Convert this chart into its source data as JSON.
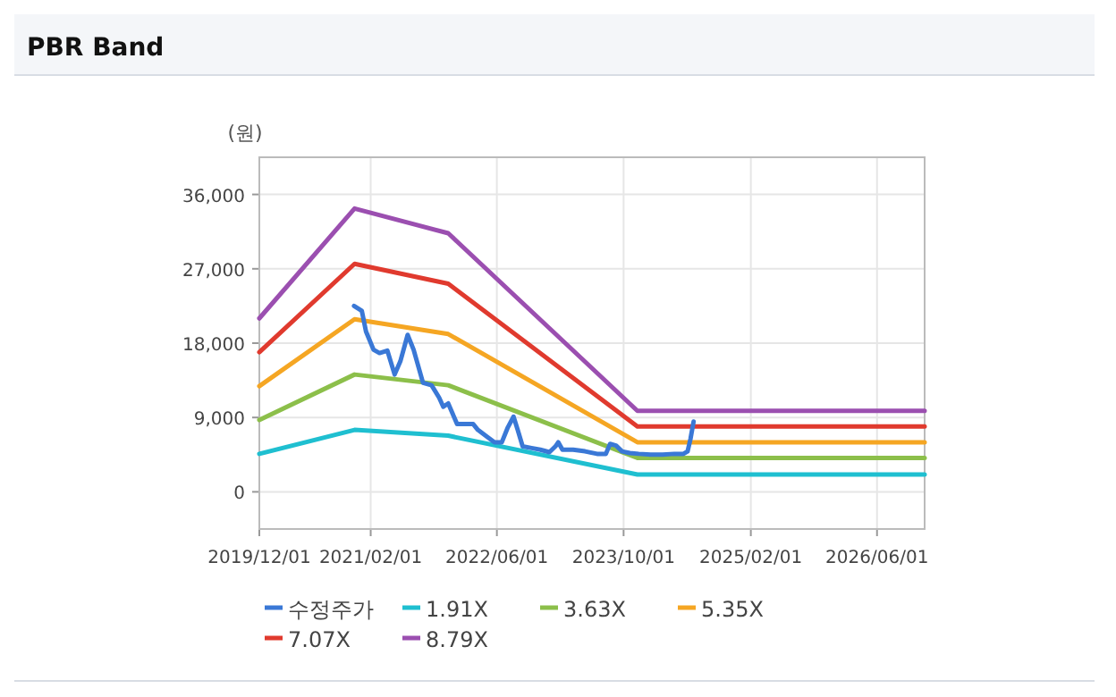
{
  "chart_data": {
    "type": "line",
    "title": "PBR Band",
    "ylabel": "(원)",
    "xlim": [
      "2019-12-01",
      "2026-12-01"
    ],
    "ylim": [
      -4500,
      40500
    ],
    "xticks": [
      {
        "value": "2019-12-01",
        "label": "2019/12/01"
      },
      {
        "value": "2021-02-01",
        "label": "2021/02/01"
      },
      {
        "value": "2022-06-01",
        "label": "2022/06/01"
      },
      {
        "value": "2023-10-01",
        "label": "2023/10/01"
      },
      {
        "value": "2025-02-01",
        "label": "2025/02/01"
      },
      {
        "value": "2026-06-01",
        "label": "2026/06/01"
      }
    ],
    "yticks": [
      0,
      {
        "value": 9000,
        "label": "9,000"
      },
      {
        "value": 18000,
        "label": "18,000"
      },
      {
        "value": 27000,
        "label": "27,000"
      },
      {
        "value": 36000,
        "label": "36,000"
      }
    ],
    "grid": true,
    "legend": "bottom",
    "marker": "none",
    "line_style": "solid",
    "series": [
      {
        "name": "수정주가",
        "color": "#3a78d6",
        "x": [
          "2020-11-29",
          "2020-12-29",
          "2021-01-14",
          "2021-02-12",
          "2021-03-07",
          "2021-04-06",
          "2021-05-04",
          "2021-05-26",
          "2021-06-23",
          "2021-07-16",
          "2021-08-21",
          "2021-09-23",
          "2021-10-22",
          "2021-11-07",
          "2021-11-26",
          "2021-12-30",
          "2022-02-07",
          "2022-03-02",
          "2022-03-20",
          "2022-04-23",
          "2022-05-23",
          "2022-06-20",
          "2022-07-13",
          "2022-08-04",
          "2022-08-20",
          "2022-09-08",
          "2022-10-12",
          "2022-11-15",
          "2022-12-20",
          "2023-01-12",
          "2023-01-23",
          "2023-02-08",
          "2023-03-21",
          "2023-05-06",
          "2023-06-21",
          "2023-07-25",
          "2023-08-10",
          "2023-09-02",
          "2023-09-25",
          "2023-10-25",
          "2023-11-28",
          "2024-01-13",
          "2024-02-28",
          "2024-04-13",
          "2024-05-18",
          "2024-06-03",
          "2024-06-14",
          "2024-06-26"
        ],
        "values": [
          22500,
          21900,
          19400,
          17200,
          16800,
          17100,
          14200,
          15800,
          19000,
          17200,
          13200,
          12900,
          11400,
          10300,
          10700,
          8200,
          8200,
          8200,
          7500,
          6700,
          6000,
          6000,
          7800,
          9100,
          7500,
          5500,
          5300,
          5100,
          4800,
          5500,
          6000,
          5100,
          5100,
          4900,
          4600,
          4600,
          5800,
          5600,
          4900,
          4700,
          4600,
          4500,
          4500,
          4600,
          4600,
          4900,
          6400,
          8500
        ]
      },
      {
        "name": "1.91X",
        "color": "#1fbfd0",
        "x": [
          "2019-12-01",
          "2020-12-01",
          "2021-11-26",
          "2023-11-23",
          "2026-12-01"
        ],
        "values": [
          4600,
          7500,
          6800,
          2100,
          2100
        ]
      },
      {
        "name": "3.63X",
        "color": "#8cbf4a",
        "x": [
          "2019-12-01",
          "2020-12-01",
          "2021-11-26",
          "2023-11-23",
          "2026-12-01"
        ],
        "values": [
          8700,
          14200,
          12900,
          4100,
          4100
        ]
      },
      {
        "name": "5.35X",
        "color": "#f5a623",
        "x": [
          "2019-12-01",
          "2020-12-01",
          "2021-11-26",
          "2023-11-23",
          "2026-12-01"
        ],
        "values": [
          12800,
          20900,
          19100,
          6000,
          6000
        ]
      },
      {
        "name": "7.07X",
        "color": "#e03a2e",
        "x": [
          "2019-12-01",
          "2020-12-01",
          "2021-11-26",
          "2023-11-23",
          "2026-12-01"
        ],
        "values": [
          16900,
          27600,
          25200,
          7900,
          7900
        ]
      },
      {
        "name": "8.79X",
        "color": "#9b4fb0",
        "x": [
          "2019-12-01",
          "2020-12-01",
          "2021-11-26",
          "2023-11-23",
          "2026-12-01"
        ],
        "values": [
          21000,
          34300,
          31300,
          9800,
          9800
        ]
      }
    ]
  }
}
